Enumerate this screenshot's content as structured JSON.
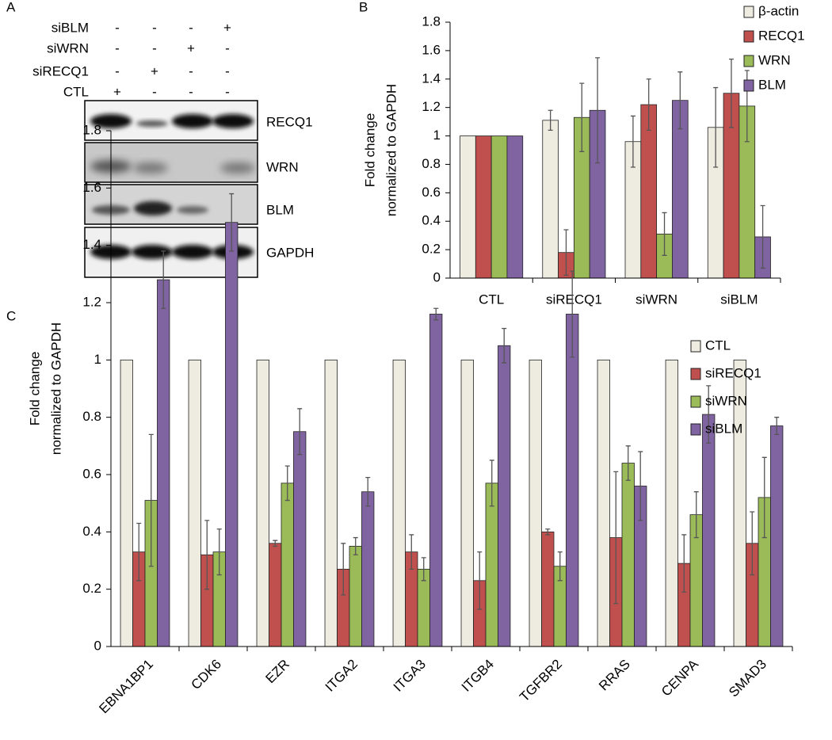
{
  "panel_labels": [
    "A",
    "B",
    "C"
  ],
  "blot": {
    "rows": [
      {
        "label": "siBLM",
        "marks": [
          "-",
          "-",
          "-",
          "+"
        ]
      },
      {
        "label": "siWRN",
        "marks": [
          "-",
          "-",
          "+",
          "-"
        ]
      },
      {
        "label": "siRECQ1",
        "marks": [
          "-",
          "+",
          "-",
          "-"
        ]
      },
      {
        "label": "CTL",
        "marks": [
          "+",
          "-",
          "-",
          "-"
        ]
      }
    ],
    "bands": [
      "RECQ1",
      "WRN",
      "BLM",
      "GAPDH"
    ]
  },
  "chart_data": [
    {
      "type": "bar",
      "ylabel": [
        "Fold change",
        "normalized to GAPDH"
      ],
      "categories": [
        "CTL",
        "siRECQ1",
        "siWRN",
        "siBLM"
      ],
      "series": [
        {
          "name": "β-actin",
          "color": "#eeece1",
          "values": [
            1,
            1.11,
            0.96,
            1.06
          ],
          "errors": [
            null,
            0.07,
            0.18,
            0.28
          ]
        },
        {
          "name": "RECQ1",
          "color": "#c0504d",
          "values": [
            1,
            0.18,
            1.22,
            1.3
          ],
          "errors": [
            null,
            0.16,
            0.18,
            0.24
          ]
        },
        {
          "name": "WRN",
          "color": "#9bbb59",
          "values": [
            1,
            1.13,
            0.31,
            1.21
          ],
          "errors": [
            null,
            0.24,
            0.15,
            0.25
          ]
        },
        {
          "name": "BLM",
          "color": "#8064a2",
          "values": [
            1,
            1.18,
            1.25,
            0.29
          ],
          "errors": [
            null,
            0.37,
            0.2,
            0.22
          ]
        }
      ],
      "ylim": [
        0,
        1.8
      ],
      "yticks": [
        0,
        0.2,
        0.4,
        0.6,
        0.8,
        1,
        1.2,
        1.4,
        1.6,
        1.8
      ],
      "grid": false,
      "legend": "upper right"
    },
    {
      "type": "bar",
      "ylabel": [
        "Fold change",
        "normalized to GAPDH"
      ],
      "categories": [
        "EBNA1BP1",
        "CDK6",
        "EZR",
        "ITGA2",
        "ITGA3",
        "ITGB4",
        "TGFBR2",
        "RRAS",
        "CENPA",
        "SMAD3"
      ],
      "series": [
        {
          "name": "CTL",
          "color": "#eeece1",
          "values": [
            1,
            1,
            1,
            1,
            1,
            1,
            1,
            1,
            1,
            1
          ],
          "errors": [
            null,
            null,
            null,
            null,
            null,
            null,
            null,
            null,
            null,
            null
          ]
        },
        {
          "name": "siRECQ1",
          "color": "#c0504d",
          "values": [
            0.33,
            0.32,
            0.36,
            0.27,
            0.33,
            0.23,
            0.4,
            0.38,
            0.29,
            0.36
          ],
          "errors": [
            0.1,
            0.12,
            0.01,
            0.09,
            0.06,
            0.1,
            0.01,
            0.23,
            0.1,
            0.11
          ]
        },
        {
          "name": "siWRN",
          "color": "#9bbb59",
          "values": [
            0.51,
            0.33,
            0.57,
            0.35,
            0.27,
            0.57,
            0.28,
            0.64,
            0.46,
            0.52
          ],
          "errors": [
            0.23,
            0.08,
            0.06,
            0.03,
            0.04,
            0.08,
            0.05,
            0.06,
            0.08,
            0.14
          ]
        },
        {
          "name": "siBLM",
          "color": "#8064a2",
          "values": [
            1.28,
            1.48,
            0.75,
            0.54,
            1.16,
            1.05,
            1.16,
            0.56,
            0.81,
            0.77
          ],
          "errors": [
            0.1,
            0.1,
            0.08,
            0.05,
            0.02,
            0.06,
            0.15,
            0.12,
            0.1,
            0.03
          ]
        }
      ],
      "ylim": [
        0,
        1.8
      ],
      "yticks": [
        0,
        0.2,
        0.4,
        0.6,
        0.8,
        1,
        1.2,
        1.4,
        1.6,
        1.8
      ],
      "grid": false,
      "legend": "upper right"
    }
  ]
}
